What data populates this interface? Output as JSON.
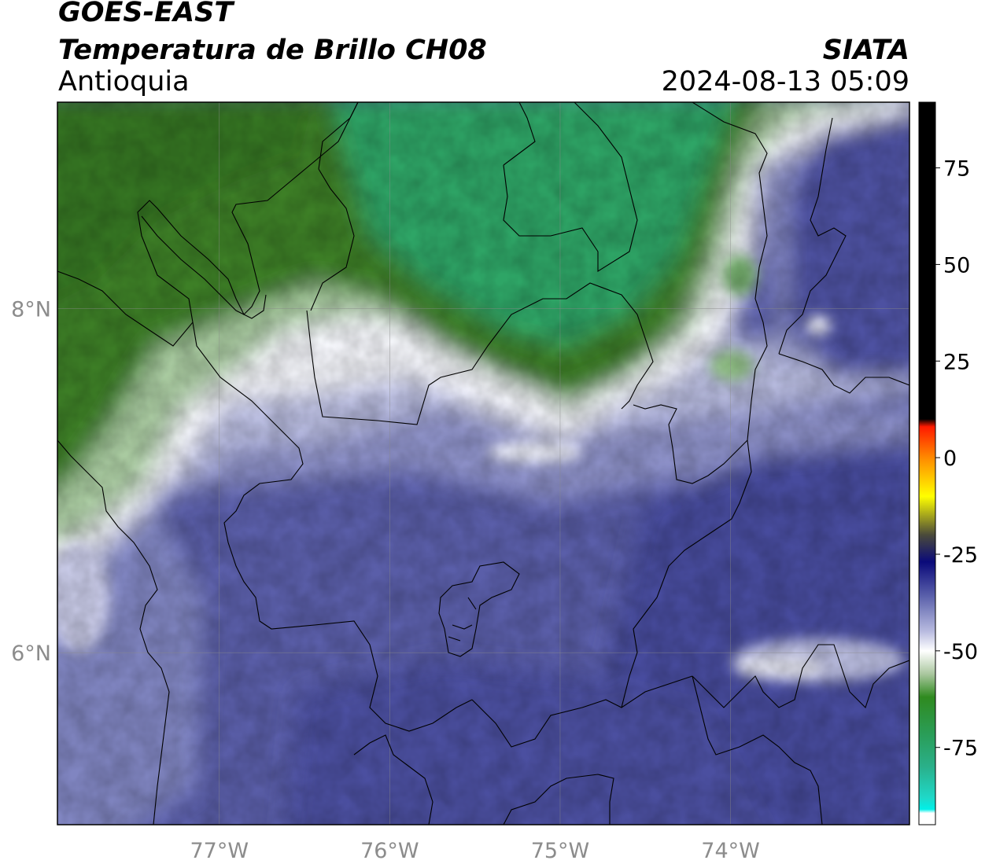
{
  "header": {
    "satellite": "GOES-EAST",
    "product": "Temperatura de Brillo CH08",
    "region": "Antioquia",
    "organization": "SIATA",
    "datetime": "2024-08-13 05:09"
  },
  "map": {
    "lon_range": [
      -77.95,
      -72.95
    ],
    "lat_range": [
      5.0,
      9.2
    ],
    "lon_ticks": [
      {
        "value": -77,
        "label": "77°W"
      },
      {
        "value": -76,
        "label": "76°W"
      },
      {
        "value": -75,
        "label": "75°W"
      },
      {
        "value": -74,
        "label": "74°W"
      }
    ],
    "lat_ticks": [
      {
        "value": 8,
        "label": "8°N"
      },
      {
        "value": 6,
        "label": "6°N"
      }
    ]
  },
  "colorbar": {
    "range": [
      -95,
      92
    ],
    "tick_values": [
      75,
      50,
      25,
      0,
      -25,
      -50,
      -75
    ],
    "tick_labels": [
      "75",
      "50",
      "25",
      "0",
      "-25",
      "-50",
      "-75"
    ],
    "stops": [
      {
        "value": 92,
        "color": "#000000"
      },
      {
        "value": 10,
        "color": "#000000"
      },
      {
        "value": 8,
        "color": "#ff1a00"
      },
      {
        "value": 0,
        "color": "#ff8a00"
      },
      {
        "value": -10,
        "color": "#ffff00"
      },
      {
        "value": -20,
        "color": "#4a4a3a"
      },
      {
        "value": -27,
        "color": "#0a0a7a"
      },
      {
        "value": -36,
        "color": "#5c62ac"
      },
      {
        "value": -45,
        "color": "#b9bce0"
      },
      {
        "value": -50,
        "color": "#ffffff"
      },
      {
        "value": -56,
        "color": "#aac79f"
      },
      {
        "value": -62,
        "color": "#2f8a1f"
      },
      {
        "value": -72,
        "color": "#2a9e5a"
      },
      {
        "value": -80,
        "color": "#2ab08a"
      },
      {
        "value": -88,
        "color": "#1fd8c8"
      },
      {
        "value": -91,
        "color": "#00f0e8"
      },
      {
        "value": -92,
        "color": "#ffffff"
      },
      {
        "value": -95,
        "color": "#ffffff"
      }
    ]
  },
  "field_colors": {
    "cold_dark_green": "#3d7d24",
    "cold_teal_green": "#2ea768",
    "light_green": "#9cc58f",
    "white_band": "#f4f5fb",
    "lavender": "#b3b6dc",
    "periwinkle": "#7e82c0",
    "indigo": "#5559a8",
    "dark_indigo": "#3f4398"
  }
}
